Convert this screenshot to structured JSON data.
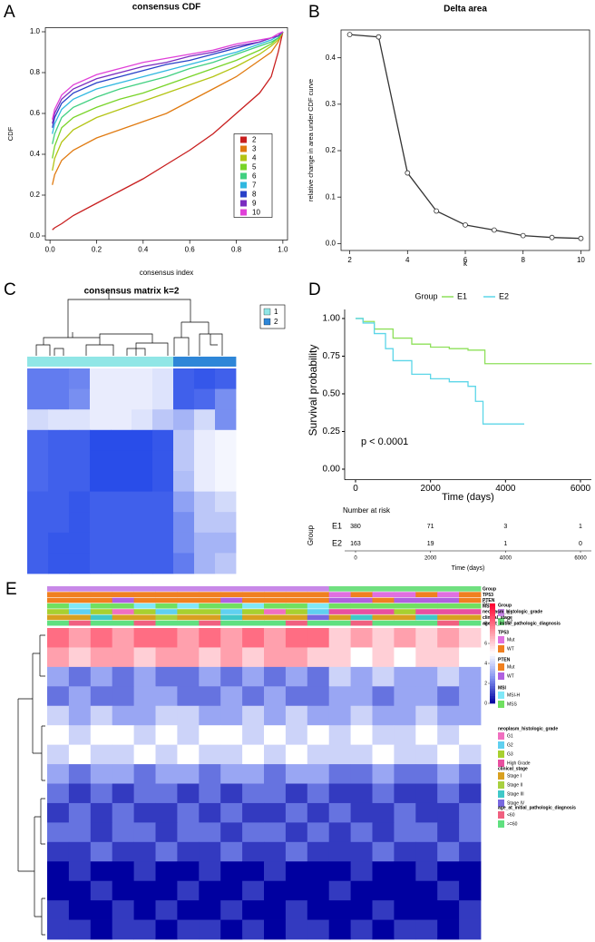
{
  "chart_data": [
    {
      "type": "line",
      "panel": "A",
      "title": "consensus CDF",
      "x_label": "consensus index",
      "y_label": "CDF",
      "x": [
        0.01,
        0.02,
        0.05,
        0.1,
        0.2,
        0.3,
        0.4,
        0.5,
        0.6,
        0.7,
        0.8,
        0.9,
        0.95,
        0.98,
        1.0
      ],
      "series": [
        {
          "name": "2",
          "color": "#c81e1e",
          "values": [
            0.03,
            0.04,
            0.06,
            0.1,
            0.16,
            0.22,
            0.28,
            0.35,
            0.42,
            0.5,
            0.6,
            0.7,
            0.78,
            0.9,
            1.0
          ]
        },
        {
          "name": "3",
          "color": "#e07a10",
          "values": [
            0.25,
            0.3,
            0.37,
            0.42,
            0.48,
            0.52,
            0.56,
            0.6,
            0.66,
            0.72,
            0.78,
            0.86,
            0.9,
            0.95,
            1.0
          ]
        },
        {
          "name": "4",
          "color": "#b4c414",
          "values": [
            0.32,
            0.38,
            0.46,
            0.52,
            0.58,
            0.62,
            0.66,
            0.7,
            0.74,
            0.78,
            0.83,
            0.89,
            0.93,
            0.96,
            1.0
          ]
        },
        {
          "name": "5",
          "color": "#78d428",
          "values": [
            0.38,
            0.44,
            0.53,
            0.58,
            0.63,
            0.67,
            0.7,
            0.74,
            0.78,
            0.82,
            0.86,
            0.91,
            0.94,
            0.97,
            1.0
          ]
        },
        {
          "name": "6",
          "color": "#40d080",
          "values": [
            0.45,
            0.5,
            0.58,
            0.63,
            0.68,
            0.72,
            0.75,
            0.78,
            0.82,
            0.85,
            0.89,
            0.93,
            0.95,
            0.97,
            1.0
          ]
        },
        {
          "name": "7",
          "color": "#30b8e0",
          "values": [
            0.5,
            0.55,
            0.62,
            0.67,
            0.72,
            0.75,
            0.78,
            0.81,
            0.84,
            0.87,
            0.9,
            0.94,
            0.96,
            0.98,
            1.0
          ]
        },
        {
          "name": "8",
          "color": "#2840c8",
          "values": [
            0.53,
            0.58,
            0.65,
            0.7,
            0.75,
            0.78,
            0.81,
            0.84,
            0.86,
            0.89,
            0.92,
            0.95,
            0.97,
            0.98,
            1.0
          ]
        },
        {
          "name": "9",
          "color": "#7a2cc0",
          "values": [
            0.55,
            0.6,
            0.67,
            0.72,
            0.77,
            0.8,
            0.83,
            0.85,
            0.88,
            0.9,
            0.93,
            0.95,
            0.97,
            0.98,
            1.0
          ]
        },
        {
          "name": "10",
          "color": "#e040d8",
          "values": [
            0.57,
            0.62,
            0.69,
            0.74,
            0.79,
            0.82,
            0.85,
            0.87,
            0.89,
            0.91,
            0.94,
            0.96,
            0.97,
            0.99,
            1.0
          ]
        }
      ],
      "xlim": [
        -0.02,
        1.02
      ],
      "ylim": [
        -0.02,
        1.02
      ],
      "xticks": [
        {
          "value": 0,
          "label": "0.0"
        },
        0.2,
        0.4,
        0.6,
        0.8,
        {
          "value": 1,
          "label": "1.0"
        }
      ],
      "yticks": [
        {
          "value": 0,
          "label": "0.0"
        },
        0.2,
        0.4,
        0.6,
        0.8,
        {
          "value": 1,
          "label": "1.0"
        }
      ],
      "legend": "center-right"
    },
    {
      "type": "line",
      "panel": "B",
      "title": "Delta area",
      "x_label": "k",
      "y_label": "relative change in area under CDF curve",
      "x": [
        2,
        3,
        4,
        5,
        6,
        7,
        8,
        9,
        10
      ],
      "values": [
        0.45,
        0.445,
        0.152,
        0.07,
        0.04,
        0.029,
        0.017,
        0.013,
        0.011
      ],
      "color": "#333333",
      "markers": true,
      "xlim": [
        1.7,
        10.3
      ],
      "ylim": [
        -0.015,
        0.46
      ],
      "xticks": [
        2,
        4,
        6,
        8,
        10
      ],
      "yticks": [
        {
          "value": 0,
          "label": "0.0"
        },
        0.1,
        0.2,
        0.3,
        0.4
      ]
    },
    {
      "type": "consensus",
      "panel": "C",
      "title": "consensus matrix k=2",
      "categories": [
        "1",
        "2"
      ],
      "category_colors": [
        "#90e6e6",
        "#2e86d8"
      ],
      "column_groups": [
        1,
        1,
        1,
        1,
        1,
        1,
        1,
        2,
        2,
        2
      ],
      "colors": [
        "#ffffff",
        "#1e44e8"
      ],
      "clim": [
        0,
        1
      ],
      "matrix": [
        [
          0.7,
          0.7,
          0.65,
          0.1,
          0.1,
          0.1,
          0.15,
          0.85,
          0.9,
          0.85
        ],
        [
          0.7,
          0.7,
          0.6,
          0.1,
          0.1,
          0.1,
          0.15,
          0.85,
          0.8,
          0.6
        ],
        [
          0.2,
          0.15,
          0.15,
          0.1,
          0.1,
          0.15,
          0.3,
          0.4,
          0.2,
          0.6
        ],
        [
          0.8,
          0.85,
          0.85,
          0.95,
          0.95,
          0.95,
          0.9,
          0.3,
          0.1,
          0.05
        ],
        [
          0.8,
          0.85,
          0.85,
          0.95,
          0.95,
          0.95,
          0.9,
          0.3,
          0.1,
          0.05
        ],
        [
          0.8,
          0.85,
          0.85,
          0.95,
          0.95,
          0.95,
          0.9,
          0.35,
          0.1,
          0.05
        ],
        [
          0.85,
          0.85,
          0.9,
          0.85,
          0.85,
          0.85,
          0.85,
          0.5,
          0.3,
          0.2
        ],
        [
          0.85,
          0.85,
          0.9,
          0.85,
          0.85,
          0.85,
          0.85,
          0.6,
          0.3,
          0.3
        ],
        [
          0.85,
          0.9,
          0.9,
          0.85,
          0.85,
          0.85,
          0.85,
          0.6,
          0.4,
          0.4
        ],
        [
          0.85,
          0.9,
          0.9,
          0.85,
          0.85,
          0.85,
          0.85,
          0.7,
          0.4,
          0.3
        ]
      ]
    },
    {
      "type": "survival",
      "panel": "D",
      "legend_title": "Group",
      "x_label": "Time (days)",
      "y_label": "Survival probability",
      "annotation": "p < 0.0001",
      "risk_title": "Number at risk",
      "series": [
        {
          "name": "E1",
          "color": "#8ee05a",
          "x": [
            0,
            200,
            500,
            1000,
            1500,
            2000,
            2500,
            3000,
            3400,
            3450,
            6300
          ],
          "values": [
            1,
            0.98,
            0.93,
            0.87,
            0.83,
            0.81,
            0.8,
            0.79,
            0.79,
            0.7,
            0.7
          ],
          "at_risk": [
            380,
            71,
            3,
            1
          ]
        },
        {
          "name": "E2",
          "color": "#5cd6e8",
          "x": [
            0,
            200,
            500,
            800,
            1000,
            1500,
            2000,
            2500,
            3000,
            3200,
            3400,
            4500
          ],
          "values": [
            1,
            0.97,
            0.9,
            0.8,
            0.72,
            0.63,
            0.6,
            0.58,
            0.55,
            0.45,
            0.3,
            0.3
          ],
          "at_risk": [
            163,
            19,
            1,
            0
          ]
        }
      ],
      "xlim": [
        -290,
        6290
      ],
      "ylim": [
        -0.07,
        1.06
      ],
      "xticks": [
        0,
        2000,
        4000,
        6000
      ],
      "yticks": [
        {
          "value": 0,
          "label": "0.00"
        },
        {
          "value": 0.25,
          "label": "0.25"
        },
        {
          "value": 0.5,
          "label": "0.50"
        },
        {
          "value": 0.75,
          "label": "0.75"
        },
        {
          "value": 1,
          "label": "1.00"
        }
      ]
    },
    {
      "type": "expression",
      "panel": "E",
      "colors": [
        "#0000a0",
        "#8090f0",
        "#ffffff",
        "#ff8898",
        "#ff0030"
      ],
      "clim": [
        0,
        10
      ],
      "cticks": [
        0,
        2,
        4,
        6,
        8,
        10
      ],
      "annotations": [
        {
          "name": "Group",
          "levels": [
            "E1",
            "E2"
          ],
          "colors": [
            "#c888e8",
            "#70e080"
          ],
          "values": [
            0,
            0,
            0,
            0,
            0,
            0,
            0,
            0,
            0,
            0,
            0,
            0,
            0,
            1,
            1,
            1,
            1,
            1,
            1,
            1
          ]
        },
        {
          "name": "TP53",
          "levels": [
            "Mut",
            "WT"
          ],
          "colors": [
            "#e070e0",
            "#f08020"
          ],
          "values": [
            1,
            1,
            1,
            1,
            1,
            1,
            1,
            1,
            1,
            1,
            1,
            1,
            1,
            0,
            1,
            0,
            0,
            1,
            0,
            1
          ]
        },
        {
          "name": "PTEN",
          "levels": [
            "Mut",
            "WT"
          ],
          "colors": [
            "#f08020",
            "#b060e0"
          ],
          "values": [
            0,
            0,
            0,
            1,
            0,
            0,
            0,
            0,
            1,
            0,
            0,
            0,
            0,
            1,
            1,
            0,
            1,
            1,
            1,
            0
          ]
        },
        {
          "name": "MSI",
          "levels": [
            "MSI-H",
            "MSS"
          ],
          "colors": [
            "#80e8f8",
            "#70e060"
          ],
          "values": [
            1,
            0,
            1,
            1,
            0,
            1,
            0,
            1,
            1,
            0,
            1,
            1,
            0,
            1,
            1,
            1,
            1,
            1,
            1,
            1
          ]
        },
        {
          "name": "neoplasm_histologic_grade",
          "levels": [
            "G1",
            "G2",
            "G3",
            "High Grade"
          ],
          "colors": [
            "#f070c0",
            "#60d0f0",
            "#a8d030",
            "#e850a0"
          ],
          "values": [
            2,
            1,
            2,
            0,
            2,
            1,
            2,
            2,
            1,
            2,
            0,
            2,
            1,
            3,
            3,
            3,
            2,
            3,
            3,
            3
          ]
        },
        {
          "name": "clinical_stage",
          "levels": [
            "Stage I",
            "Stage II",
            "Stage III",
            "Stage IV"
          ],
          "colors": [
            "#d8a020",
            "#a8d040",
            "#40c8c8",
            "#7868e0"
          ],
          "values": [
            0,
            0,
            2,
            0,
            0,
            1,
            0,
            0,
            2,
            0,
            0,
            0,
            3,
            0,
            2,
            0,
            0,
            2,
            0,
            0
          ]
        },
        {
          "name": "age_at_initial_pathologic_diagnosis",
          "levels": [
            "<60",
            ">=60"
          ],
          "colors": [
            "#f06080",
            "#60e080"
          ],
          "values": [
            1,
            0,
            1,
            1,
            0,
            1,
            1,
            0,
            1,
            1,
            1,
            0,
            1,
            1,
            0,
            1,
            1,
            1,
            0,
            1
          ]
        }
      ],
      "matrix": [
        [
          8,
          7,
          8,
          7,
          8,
          8,
          7,
          8,
          7,
          8,
          7,
          8,
          8,
          6,
          7,
          6,
          7,
          6,
          7,
          6
        ],
        [
          7,
          6,
          7,
          7,
          6,
          7,
          7,
          6,
          7,
          6,
          7,
          7,
          6,
          6,
          5,
          6,
          5,
          6,
          6,
          5
        ],
        [
          3,
          2,
          3,
          2,
          3,
          2,
          2,
          3,
          2,
          3,
          2,
          3,
          2,
          4,
          3,
          4,
          3,
          3,
          4,
          3
        ],
        [
          2,
          3,
          2,
          2,
          3,
          3,
          2,
          2,
          3,
          2,
          3,
          2,
          2,
          3,
          3,
          2,
          3,
          3,
          2,
          3
        ],
        [
          4,
          3,
          4,
          3,
          3,
          4,
          4,
          3,
          3,
          4,
          3,
          4,
          3,
          3,
          4,
          3,
          3,
          4,
          3,
          3
        ],
        [
          5,
          4,
          5,
          5,
          4,
          5,
          4,
          5,
          5,
          4,
          5,
          4,
          5,
          4,
          5,
          4,
          4,
          5,
          4,
          5
        ],
        [
          4,
          5,
          4,
          4,
          5,
          4,
          5,
          4,
          4,
          5,
          4,
          5,
          4,
          4,
          4,
          5,
          4,
          4,
          5,
          4
        ],
        [
          3,
          2,
          3,
          3,
          2,
          3,
          3,
          2,
          3,
          3,
          2,
          3,
          3,
          2,
          2,
          3,
          2,
          2,
          3,
          2
        ],
        [
          2,
          1,
          2,
          1,
          2,
          2,
          1,
          2,
          1,
          2,
          2,
          1,
          2,
          1,
          1,
          2,
          1,
          1,
          2,
          1
        ],
        [
          1,
          2,
          1,
          2,
          1,
          1,
          2,
          1,
          2,
          1,
          1,
          2,
          1,
          2,
          1,
          1,
          2,
          1,
          1,
          2
        ],
        [
          2,
          2,
          1,
          2,
          2,
          1,
          2,
          2,
          1,
          2,
          2,
          1,
          2,
          1,
          2,
          1,
          2,
          2,
          1,
          2
        ],
        [
          1,
          1,
          2,
          1,
          1,
          2,
          1,
          1,
          2,
          1,
          1,
          2,
          1,
          1,
          1,
          2,
          1,
          1,
          2,
          1
        ],
        [
          0,
          1,
          0,
          0,
          1,
          0,
          0,
          1,
          0,
          0,
          1,
          0,
          0,
          0,
          1,
          0,
          0,
          1,
          0,
          0
        ],
        [
          0,
          0,
          1,
          0,
          0,
          0,
          1,
          0,
          0,
          1,
          0,
          0,
          0,
          1,
          0,
          0,
          0,
          0,
          1,
          0
        ],
        [
          1,
          0,
          0,
          1,
          0,
          1,
          0,
          0,
          1,
          0,
          0,
          1,
          0,
          0,
          0,
          1,
          0,
          0,
          0,
          1
        ],
        [
          1,
          1,
          0,
          1,
          1,
          0,
          1,
          1,
          0,
          1,
          0,
          1,
          1,
          0,
          1,
          0,
          1,
          1,
          0,
          1
        ]
      ]
    }
  ]
}
